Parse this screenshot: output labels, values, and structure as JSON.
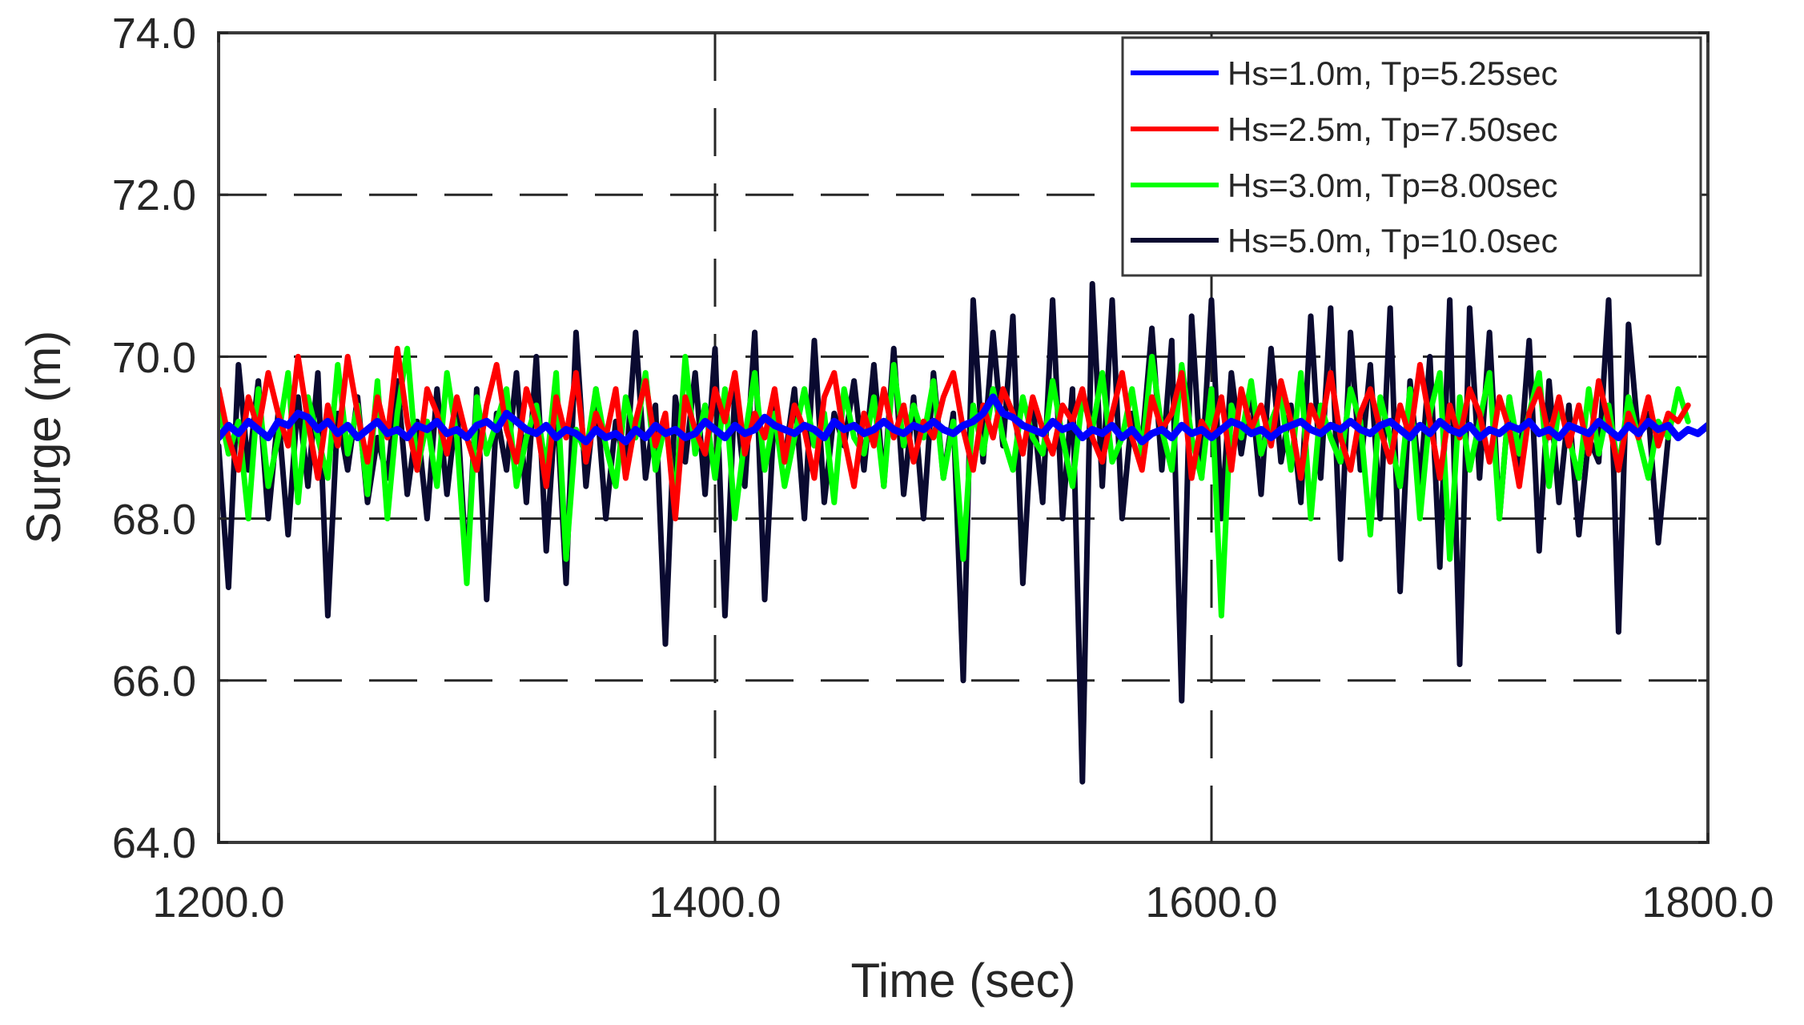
{
  "chart_data": {
    "type": "line",
    "title": "",
    "xlabel": "Time (sec)",
    "ylabel": "Surge (m)",
    "xlim": [
      1200,
      1800
    ],
    "ylim": [
      64,
      74
    ],
    "xticks": [
      1200,
      1400,
      1600,
      1800
    ],
    "xtick_labels": [
      "1200.0",
      "1400.0",
      "1600.0",
      "1800.0"
    ],
    "yticks": [
      64,
      66,
      68,
      70,
      72,
      74
    ],
    "ytick_labels": [
      "64.0",
      "66.0",
      "68.0",
      "70.0",
      "72.0",
      "74.0"
    ],
    "grid": {
      "on": true,
      "style": "dashed",
      "color": "#262626"
    },
    "legend_position": "upper right",
    "sample_interval_sec": 4,
    "x_start": 1200,
    "series": [
      {
        "name": "Hs=1.0m, Tp=5.25sec",
        "color": "#0000ff",
        "values": [
          69.0,
          69.15,
          69.05,
          69.2,
          69.1,
          69.0,
          69.2,
          69.15,
          69.3,
          69.25,
          69.1,
          69.2,
          69.05,
          69.15,
          69.0,
          69.1,
          69.2,
          69.05,
          69.1,
          69.0,
          69.15,
          69.1,
          69.2,
          69.05,
          69.1,
          69.0,
          69.15,
          69.2,
          69.1,
          69.3,
          69.2,
          69.1,
          69.05,
          69.15,
          69.0,
          69.1,
          69.05,
          68.95,
          69.1,
          69.0,
          69.05,
          68.95,
          69.1,
          69.0,
          69.15,
          69.05,
          69.1,
          69.0,
          69.05,
          69.2,
          69.1,
          69.0,
          69.15,
          69.05,
          69.1,
          69.25,
          69.15,
          69.1,
          69.05,
          69.15,
          69.1,
          69.0,
          69.2,
          69.1,
          69.15,
          69.05,
          69.1,
          69.2,
          69.1,
          69.05,
          69.15,
          69.1,
          69.2,
          69.1,
          69.05,
          69.15,
          69.2,
          69.3,
          69.5,
          69.3,
          69.25,
          69.15,
          69.1,
          69.05,
          69.2,
          69.1,
          69.15,
          69.0,
          69.1,
          69.05,
          69.15,
          69.0,
          69.1,
          68.95,
          69.05,
          69.1,
          69.0,
          69.15,
          69.05,
          69.1,
          69.0,
          69.1,
          69.2,
          69.15,
          69.05,
          69.1,
          69.0,
          69.1,
          69.15,
          69.2,
          69.1,
          69.05,
          69.15,
          69.1,
          69.2,
          69.1,
          69.05,
          69.15,
          69.2,
          69.1,
          69.0,
          69.15,
          69.05,
          69.2,
          69.1,
          69.05,
          69.15,
          69.0,
          69.1,
          69.05,
          69.15,
          69.1,
          69.2,
          69.05,
          69.1,
          69.0,
          69.15,
          69.1,
          69.05,
          69.2,
          69.1,
          69.0,
          69.15,
          69.05,
          69.2,
          69.1,
          69.15,
          69.0,
          69.1,
          69.05,
          69.15
        ]
      },
      {
        "name": "Hs=2.5m, Tp=7.50sec",
        "color": "#ff0000",
        "values": [
          69.6,
          69.0,
          68.6,
          69.5,
          69.1,
          69.8,
          69.3,
          68.9,
          70.0,
          69.2,
          68.5,
          69.4,
          68.9,
          70.0,
          69.3,
          68.7,
          69.5,
          69.0,
          70.1,
          69.2,
          68.6,
          69.6,
          69.3,
          68.8,
          69.5,
          69.0,
          68.6,
          69.4,
          69.9,
          69.1,
          68.7,
          69.6,
          69.2,
          68.4,
          69.5,
          69.0,
          69.8,
          68.7,
          69.3,
          69.0,
          69.6,
          68.5,
          69.2,
          69.7,
          68.9,
          69.3,
          68.0,
          69.5,
          69.1,
          68.8,
          69.6,
          69.2,
          69.8,
          68.8,
          69.3,
          69.0,
          69.6,
          68.7,
          69.4,
          69.1,
          68.5,
          69.5,
          69.8,
          69.0,
          68.4,
          69.3,
          68.9,
          69.6,
          69.0,
          69.4,
          68.7,
          69.2,
          69.0,
          69.5,
          69.8,
          69.1,
          68.6,
          69.4,
          69.0,
          69.6,
          69.3,
          68.8,
          69.5,
          69.1,
          68.8,
          69.4,
          69.2,
          69.6,
          69.0,
          68.7,
          69.3,
          69.8,
          69.0,
          68.6,
          69.5,
          69.1,
          69.3,
          69.8,
          68.5,
          69.2,
          69.0,
          69.5,
          68.6,
          69.6,
          69.1,
          69.4,
          68.9,
          69.7,
          69.2,
          68.5,
          69.4,
          69.1,
          69.8,
          69.0,
          68.6,
          69.3,
          69.6,
          69.1,
          68.7,
          69.4,
          69.0,
          69.9,
          69.2,
          68.5,
          69.4,
          69.0,
          69.6,
          69.3,
          68.7,
          69.5,
          69.1,
          68.4,
          69.3,
          69.6,
          69.0,
          69.5,
          68.9,
          69.4,
          68.8,
          69.7,
          69.2,
          68.6,
          69.3,
          69.0,
          69.5,
          68.9,
          69.3,
          69.2,
          69.4
        ]
      },
      {
        "name": "Hs=3.0m, Tp=8.00sec",
        "color": "#00ff00",
        "values": [
          69.4,
          68.8,
          69.2,
          68.0,
          69.6,
          68.4,
          69.0,
          69.8,
          68.2,
          69.5,
          69.0,
          68.5,
          69.9,
          68.8,
          69.4,
          68.3,
          69.7,
          68.0,
          69.3,
          70.1,
          68.6,
          69.2,
          68.4,
          69.8,
          69.0,
          67.2,
          69.5,
          68.8,
          69.2,
          69.6,
          68.4,
          69.0,
          69.4,
          68.6,
          69.8,
          67.5,
          69.1,
          68.8,
          69.6,
          68.9,
          68.4,
          69.5,
          69.0,
          69.8,
          68.6,
          69.2,
          68.2,
          70.0,
          68.8,
          69.4,
          68.5,
          69.6,
          68.0,
          69.0,
          69.8,
          68.6,
          69.3,
          68.4,
          69.0,
          69.6,
          68.9,
          69.3,
          68.2,
          69.6,
          69.0,
          68.8,
          69.5,
          68.4,
          69.9,
          68.9,
          69.4,
          69.0,
          69.7,
          68.5,
          69.2,
          67.5,
          69.4,
          68.8,
          69.6,
          69.0,
          68.6,
          69.5,
          69.0,
          68.8,
          69.7,
          69.0,
          68.4,
          69.5,
          69.1,
          69.8,
          68.7,
          69.0,
          69.6,
          68.8,
          70.0,
          69.1,
          68.6,
          69.9,
          69.0,
          68.5,
          69.6,
          66.8,
          69.4,
          69.0,
          69.7,
          68.8,
          69.2,
          69.5,
          68.6,
          69.8,
          68.0,
          69.4,
          69.0,
          68.7,
          69.6,
          69.2,
          67.8,
          69.5,
          69.0,
          68.4,
          69.6,
          68.0,
          69.3,
          69.8,
          67.5,
          69.5,
          68.6,
          69.2,
          69.8,
          68.0,
          69.5,
          68.8,
          69.3,
          69.8,
          68.4,
          69.4,
          69.0,
          68.5,
          69.6,
          68.8,
          69.4,
          68.6,
          69.5,
          69.0,
          68.5,
          69.2,
          69.0,
          69.6,
          69.2
        ]
      },
      {
        "name": "Hs=5.0m, Tp=10.0sec",
        "color": "#0a0a30",
        "values": [
          68.9,
          67.15,
          69.9,
          68.6,
          69.7,
          68.0,
          69.3,
          67.8,
          69.5,
          68.4,
          69.8,
          66.8,
          69.3,
          68.6,
          69.5,
          68.2,
          69.0,
          68.5,
          69.7,
          68.3,
          69.2,
          68.0,
          69.6,
          68.3,
          69.4,
          67.3,
          69.6,
          67.0,
          69.3,
          68.6,
          69.8,
          68.2,
          70.0,
          67.6,
          69.5,
          67.2,
          70.3,
          68.4,
          69.6,
          68.0,
          69.2,
          68.6,
          70.3,
          68.5,
          69.4,
          66.45,
          69.5,
          68.7,
          69.8,
          68.3,
          70.1,
          66.8,
          69.6,
          68.4,
          70.3,
          67.0,
          69.4,
          68.7,
          69.6,
          68.0,
          70.2,
          68.2,
          69.3,
          68.9,
          69.7,
          68.6,
          69.9,
          68.4,
          70.1,
          68.3,
          69.5,
          68.0,
          69.8,
          68.5,
          69.3,
          66.0,
          70.7,
          68.7,
          70.3,
          68.9,
          70.5,
          67.2,
          69.4,
          68.2,
          70.7,
          68.0,
          69.6,
          64.75,
          70.9,
          68.4,
          70.7,
          68.0,
          69.3,
          68.9,
          70.35,
          68.6,
          70.2,
          65.75,
          70.5,
          68.5,
          70.7,
          68.0,
          69.8,
          68.8,
          69.6,
          68.3,
          70.1,
          68.7,
          69.4,
          68.2,
          70.5,
          68.5,
          70.6,
          67.5,
          70.3,
          68.6,
          69.9,
          68.0,
          70.6,
          67.1,
          69.7,
          68.4,
          70.0,
          67.4,
          70.7,
          66.2,
          70.6,
          68.5,
          70.3,
          68.0,
          69.5,
          68.6,
          70.2,
          67.6,
          69.7,
          68.2,
          69.4,
          67.8,
          69.0,
          68.7,
          70.7,
          66.6,
          70.4,
          69.0,
          69.3,
          67.7,
          69.0
        ]
      }
    ]
  },
  "legend": {
    "items": [
      {
        "label": "Hs=1.0m, Tp=5.25sec",
        "color": "#0000ff"
      },
      {
        "label": "Hs=2.5m, Tp=7.50sec",
        "color": "#ff0000"
      },
      {
        "label": "Hs=3.0m, Tp=8.00sec",
        "color": "#00ff00"
      },
      {
        "label": "Hs=5.0m, Tp=10.0sec",
        "color": "#0a0a30"
      }
    ]
  },
  "axes": {
    "xlabel": "Time (sec)",
    "ylabel": "Surge (m)",
    "xtick_labels": [
      "1200.0",
      "1400.0",
      "1600.0",
      "1800.0"
    ],
    "ytick_labels": [
      "74.0",
      "72.0",
      "70.0",
      "68.0",
      "66.0",
      "64.0"
    ]
  }
}
